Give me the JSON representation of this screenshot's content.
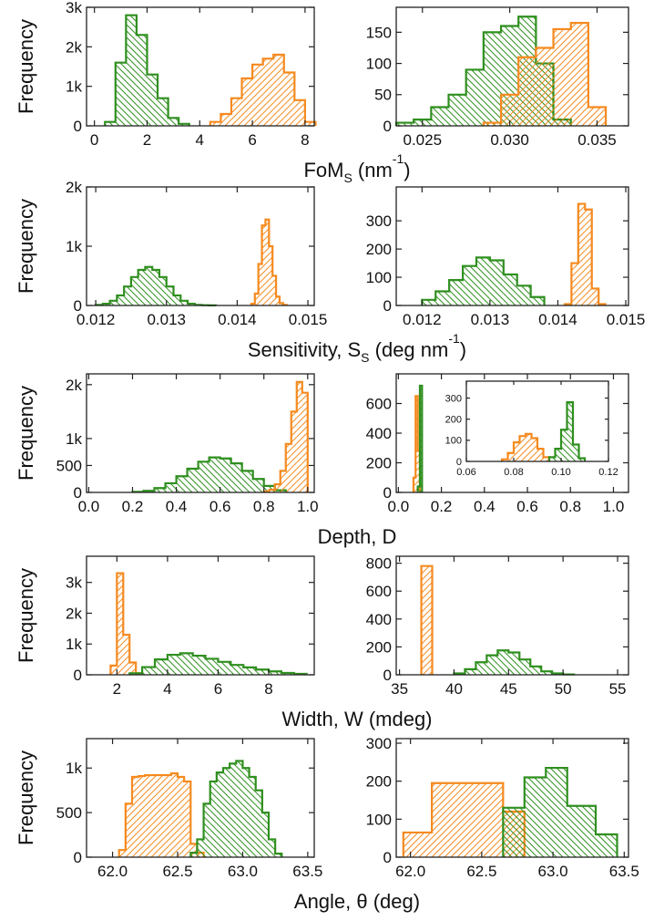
{
  "chart_data": [
    {
      "type": "histogram",
      "ylabel": "Frequency",
      "xlabel": [
        {
          "text": "FoM"
        },
        {
          "text": "S",
          "script": "sub"
        },
        {
          "text": " (nm"
        },
        {
          "text": "-1",
          "script": "sup"
        },
        {
          "text": ")"
        }
      ],
      "xlim": [
        -0.3,
        8.35
      ],
      "xticks": [
        0,
        2,
        4,
        6,
        8
      ],
      "ylim": [
        0,
        3000
      ],
      "yticks": [
        0,
        {
          "value": 1000,
          "label": "1k"
        },
        {
          "value": 2000,
          "label": "2k"
        },
        {
          "value": 3000,
          "label": "3k"
        }
      ],
      "series": [
        {
          "color": "#2f8f1f",
          "hatch": "backslash",
          "bins": [
            0.4,
            0.8,
            1.2,
            1.6,
            2.0,
            2.4,
            2.8,
            3.2,
            3.6
          ],
          "values": [
            100,
            1600,
            2800,
            2300,
            1300,
            700,
            200,
            50
          ]
        },
        {
          "color": "#f58a1f",
          "hatch": "slash",
          "bins": [
            4.4,
            4.8,
            5.2,
            5.6,
            6.0,
            6.4,
            6.8,
            7.2,
            7.6,
            8.0,
            8.4
          ],
          "values": [
            100,
            300,
            700,
            1200,
            1550,
            1700,
            1800,
            1350,
            650,
            100
          ]
        }
      ]
    },
    {
      "type": "histogram",
      "xlim": [
        0.0235,
        0.0368
      ],
      "xticks": [
        0.025,
        {
          "value": 0.03,
          "label": "0.030"
        },
        0.035
      ],
      "ylim": [
        0,
        190
      ],
      "yticks": [
        0,
        50,
        100,
        150
      ],
      "series": [
        {
          "color": "#2f8f1f",
          "hatch": "backslash",
          "bins": [
            0.0235,
            0.0245,
            0.0255,
            0.0265,
            0.0275,
            0.0285,
            0.0295,
            0.0305,
            0.0315,
            0.0325,
            0.0335
          ],
          "values": [
            5,
            10,
            30,
            50,
            90,
            150,
            160,
            175,
            100,
            10
          ]
        },
        {
          "color": "#f58a1f",
          "hatch": "slash",
          "bins": [
            0.0285,
            0.0295,
            0.0305,
            0.0315,
            0.0325,
            0.0335,
            0.0345,
            0.0355
          ],
          "values": [
            5,
            50,
            110,
            125,
            155,
            165,
            30
          ]
        }
      ]
    },
    {
      "type": "histogram",
      "ylabel": "Frequency",
      "xlabel": [
        {
          "text": "Sensitivity, S"
        },
        {
          "text": "S",
          "script": "sub"
        },
        {
          "text": " (deg nm"
        },
        {
          "text": "-1",
          "script": "sup"
        },
        {
          "text": ")"
        }
      ],
      "xlim": [
        0.01187,
        0.01509
      ],
      "xticks": [
        0.012,
        0.013,
        0.014,
        0.015
      ],
      "ylim": [
        0,
        2000
      ],
      "yticks": [
        0,
        {
          "value": 1000,
          "label": "1k"
        },
        {
          "value": 2000,
          "label": "2k"
        }
      ],
      "series": [
        {
          "color": "#2f8f1f",
          "hatch": "backslash",
          "bins": [
            0.012,
            0.0121,
            0.0122,
            0.0123,
            0.0124,
            0.0125,
            0.0126,
            0.0127,
            0.0128,
            0.0129,
            0.013,
            0.0131,
            0.0132,
            0.0133,
            0.0134,
            0.0135,
            0.0136,
            0.0137
          ],
          "values": [
            10,
            30,
            80,
            170,
            320,
            480,
            600,
            650,
            600,
            480,
            320,
            170,
            80,
            30,
            10,
            5,
            2
          ]
        },
        {
          "color": "#f58a1f",
          "hatch": "slash",
          "bins": [
            0.0142,
            0.01425,
            0.0143,
            0.01435,
            0.0144,
            0.01445,
            0.0145,
            0.01455,
            0.0146,
            0.01465,
            0.0147
          ],
          "values": [
            30,
            200,
            700,
            1350,
            1450,
            1000,
            500,
            150,
            40,
            10
          ]
        }
      ]
    },
    {
      "type": "histogram",
      "xlim": [
        0.01162,
        0.01504
      ],
      "xticks": [
        0.012,
        0.013,
        0.014,
        0.015
      ],
      "ylim": [
        0,
        420
      ],
      "yticks": [
        0,
        100,
        200,
        300
      ],
      "series": [
        {
          "color": "#2f8f1f",
          "hatch": "backslash",
          "bins": [
            0.012,
            0.0122,
            0.0124,
            0.0126,
            0.0128,
            0.013,
            0.0132,
            0.0134,
            0.0136,
            0.0138
          ],
          "values": [
            20,
            50,
            90,
            140,
            170,
            160,
            110,
            70,
            30
          ]
        },
        {
          "color": "#f58a1f",
          "hatch": "slash",
          "bins": [
            0.0141,
            0.0142,
            0.0143,
            0.0144,
            0.0145,
            0.0146,
            0.0147
          ],
          "values": [
            5,
            150,
            360,
            340,
            60,
            5
          ]
        }
      ]
    },
    {
      "type": "histogram",
      "ylabel": "Frequency",
      "xlabel": [
        {
          "text": "Depth, D"
        }
      ],
      "xlim": [
        -0.01,
        1.03
      ],
      "xticks": [
        {
          "value": 0,
          "label": "0.0"
        },
        0.2,
        0.4,
        0.6,
        0.8,
        {
          "value": 1,
          "label": "1.0"
        }
      ],
      "ylim": [
        0,
        2200
      ],
      "yticks": [
        0,
        500,
        {
          "value": 1000,
          "label": "1k"
        },
        {
          "value": 2000,
          "label": "2k"
        }
      ],
      "series": [
        {
          "color": "#2f8f1f",
          "hatch": "backslash",
          "bins": [
            0.2,
            0.25,
            0.3,
            0.35,
            0.4,
            0.45,
            0.5,
            0.55,
            0.6,
            0.65,
            0.7,
            0.75,
            0.8,
            0.85,
            0.9
          ],
          "values": [
            10,
            30,
            80,
            170,
            300,
            440,
            570,
            650,
            630,
            540,
            400,
            250,
            120,
            40
          ]
        },
        {
          "color": "#f58a1f",
          "hatch": "slash",
          "bins": [
            0.8,
            0.825,
            0.85,
            0.875,
            0.9,
            0.925,
            0.95,
            0.975,
            1.0
          ],
          "values": [
            20,
            50,
            150,
            400,
            900,
            1500,
            2050,
            1850
          ]
        }
      ]
    },
    {
      "type": "histogram",
      "xlim": [
        -0.01,
        1.07
      ],
      "xticks": [
        {
          "value": 0,
          "label": "0.0"
        },
        0.2,
        0.4,
        0.6,
        0.8,
        {
          "value": 1,
          "label": "1.0"
        }
      ],
      "ylim": [
        0,
        800
      ],
      "yticks": [
        0,
        200,
        400,
        600
      ],
      "series": [
        {
          "color": "#f58a1f",
          "hatch": "slash",
          "bins": [
            0.07,
            0.08,
            0.09,
            0.1
          ],
          "values": [
            100,
            650,
            280
          ]
        },
        {
          "color": "#2f8f1f",
          "hatch": "backslash",
          "bins": [
            0.09,
            0.1,
            0.11
          ],
          "values": [
            40,
            720
          ]
        }
      ],
      "inset": {
        "type": "histogram",
        "xlim": [
          0.06,
          0.12
        ],
        "xticks": [
          0.06,
          0.08,
          {
            "value": 0.1,
            "label": "0.10"
          },
          0.12
        ],
        "ylim": [
          0,
          380
        ],
        "yticks": [
          0,
          100,
          200,
          300
        ],
        "series": [
          {
            "color": "#f58a1f",
            "hatch": "slash",
            "bins": [
              0.075,
              0.0775,
              0.08,
              0.0825,
              0.085,
              0.0875,
              0.09,
              0.0925,
              0.095
            ],
            "values": [
              10,
              40,
              90,
              120,
              130,
              110,
              60,
              20
            ]
          },
          {
            "color": "#2f8f1f",
            "hatch": "backslash",
            "bins": [
              0.095,
              0.0975,
              0.1,
              0.1025,
              0.105,
              0.1075,
              0.11
            ],
            "values": [
              20,
              60,
              150,
              280,
              80,
              15
            ]
          }
        ]
      }
    },
    {
      "type": "histogram",
      "ylabel": "Frequency",
      "xlabel": [
        {
          "text": "Width, W (mdeg)"
        }
      ],
      "xlim": [
        0.8,
        9.8
      ],
      "xticks": [
        2,
        4,
        6,
        8
      ],
      "ylim": [
        0,
        3850
      ],
      "yticks": [
        0,
        {
          "value": 1000,
          "label": "1k"
        },
        {
          "value": 2000,
          "label": "2k"
        },
        {
          "value": 3000,
          "label": "3k"
        }
      ],
      "series": [
        {
          "color": "#f58a1f",
          "hatch": "slash",
          "bins": [
            1.75,
            2.0,
            2.25,
            2.5,
            2.75,
            3.0
          ],
          "values": [
            300,
            3300,
            1300,
            400,
            50
          ]
        },
        {
          "color": "#2f8f1f",
          "hatch": "backslash",
          "bins": [
            2.5,
            3.0,
            3.5,
            4.0,
            4.5,
            5.0,
            5.5,
            6.0,
            6.5,
            7.0,
            7.5,
            8.0,
            8.5,
            9.0,
            9.5
          ],
          "values": [
            50,
            250,
            500,
            650,
            700,
            620,
            520,
            420,
            320,
            240,
            170,
            110,
            60,
            30
          ]
        }
      ]
    },
    {
      "type": "histogram",
      "xlim": [
        34.7,
        56
      ],
      "xticks": [
        35,
        40,
        45,
        50,
        55
      ],
      "ylim": [
        0,
        850
      ],
      "yticks": [
        0,
        200,
        400,
        600,
        800
      ],
      "series": [
        {
          "color": "#f58a1f",
          "hatch": "slash",
          "bins": [
            37,
            38
          ],
          "values": [
            780
          ]
        },
        {
          "color": "#2f8f1f",
          "hatch": "backslash",
          "bins": [
            40,
            41,
            42,
            43,
            44,
            45,
            46,
            47,
            48,
            49,
            50,
            51
          ],
          "values": [
            10,
            40,
            90,
            140,
            175,
            160,
            110,
            60,
            25,
            10,
            3
          ]
        }
      ]
    },
    {
      "type": "histogram",
      "ylabel": "Frequency",
      "xlabel": [
        {
          "text": "Angle, θ (deg)"
        }
      ],
      "xlim": [
        61.8,
        63.55
      ],
      "xticks": [
        {
          "value": 62,
          "label": "62.0"
        },
        62.5,
        {
          "value": 63,
          "label": "63.0"
        },
        63.5
      ],
      "ylim": [
        0,
        1330
      ],
      "yticks": [
        0,
        500,
        {
          "value": 1000,
          "label": "1k"
        }
      ],
      "series": [
        {
          "color": "#f58a1f",
          "hatch": "slash",
          "bins": [
            62.05,
            62.1,
            62.15,
            62.2,
            62.25,
            62.3,
            62.35,
            62.4,
            62.45,
            62.5,
            62.55,
            62.6,
            62.65,
            62.7
          ],
          "values": [
            80,
            600,
            900,
            910,
            920,
            920,
            920,
            920,
            940,
            900,
            850,
            150,
            50
          ]
        },
        {
          "color": "#2f8f1f",
          "hatch": "backslash",
          "bins": [
            62.6,
            62.65,
            62.7,
            62.75,
            62.8,
            62.85,
            62.9,
            62.95,
            63.0,
            63.05,
            63.1,
            63.15,
            63.2,
            63.25,
            63.3
          ],
          "values": [
            50,
            200,
            600,
            850,
            950,
            1000,
            1050,
            1080,
            1000,
            900,
            750,
            500,
            200,
            40
          ]
        }
      ]
    },
    {
      "type": "histogram",
      "xlim": [
        61.9,
        63.53
      ],
      "xticks": [
        {
          "value": 62,
          "label": "62.0"
        },
        62.5,
        {
          "value": 63,
          "label": "63.0"
        },
        63.5
      ],
      "ylim": [
        0,
        312
      ],
      "yticks": [
        0,
        100,
        200,
        300
      ],
      "series": [
        {
          "color": "#f58a1f",
          "hatch": "slash",
          "bins": [
            61.95,
            62.15,
            62.65,
            62.8
          ],
          "values": [
            65,
            195,
            120
          ]
        },
        {
          "color": "#2f8f1f",
          "hatch": "backslash",
          "bins": [
            62.65,
            62.8,
            62.95,
            63.1,
            63.3,
            63.45
          ],
          "values": [
            130,
            210,
            235,
            135,
            60
          ]
        }
      ]
    }
  ]
}
